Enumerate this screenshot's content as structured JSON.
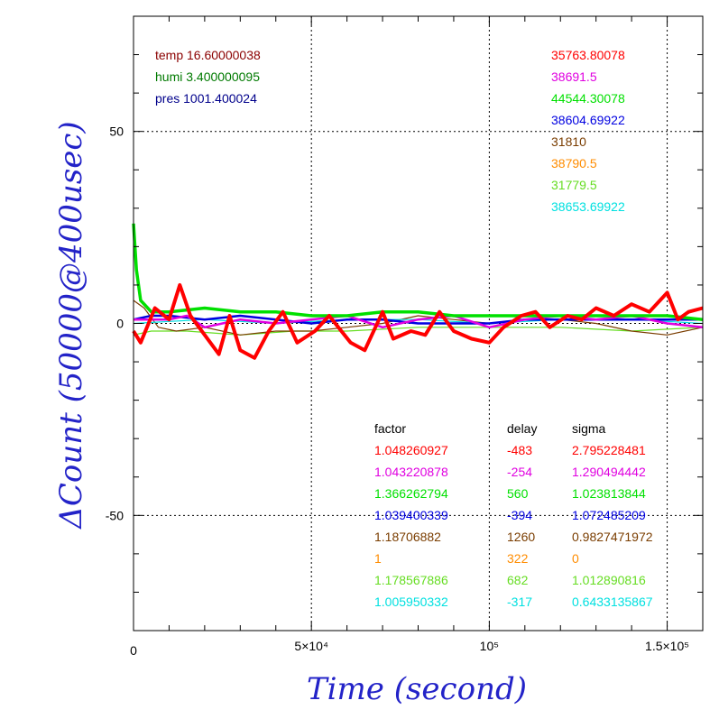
{
  "chart_data": {
    "type": "line",
    "xlabel": "Time (second)",
    "ylabel": "ΔCount (50000@400usec)",
    "xlim": [
      0,
      1600000
    ],
    "ylim": [
      -80,
      80
    ],
    "grid": true,
    "x_tick_labels": [
      {
        "value": 0,
        "label": "0"
      },
      {
        "value": 500000,
        "label": "5×10⁴"
      },
      {
        "value": 1000000,
        "label": "10⁵"
      },
      {
        "value": 1500000,
        "label": "1.5×10⁵"
      }
    ],
    "y_tick_labels": [
      {
        "value": 50,
        "label": "50"
      },
      {
        "value": 0,
        "label": "0"
      },
      {
        "value": -50,
        "label": "-50"
      }
    ],
    "env_annotations": [
      {
        "text": "temp 16.60000038",
        "color": "#8b0000"
      },
      {
        "text": "humi 3.400000095",
        "color": "#007a00"
      },
      {
        "text": "pres 1001.400024",
        "color": "#00008b"
      }
    ],
    "table_headers": {
      "factor": "factor",
      "delay": "delay",
      "sigma": "sigma"
    },
    "series": [
      {
        "mean": "35763.80078",
        "factor": "1.048260927",
        "delay": "-483",
        "sigma": "2.795228481",
        "color": "#ff0000",
        "points": [
          [
            0,
            -2
          ],
          [
            20000,
            -5
          ],
          [
            60000,
            4
          ],
          [
            100000,
            1
          ],
          [
            130000,
            10
          ],
          [
            160000,
            2
          ],
          [
            200000,
            -3
          ],
          [
            240000,
            -8
          ],
          [
            270000,
            2
          ],
          [
            300000,
            -7
          ],
          [
            340000,
            -9
          ],
          [
            380000,
            -2
          ],
          [
            420000,
            3
          ],
          [
            460000,
            -5
          ],
          [
            510000,
            -2
          ],
          [
            550000,
            2
          ],
          [
            610000,
            -5
          ],
          [
            650000,
            -7
          ],
          [
            700000,
            3
          ],
          [
            730000,
            -4
          ],
          [
            780000,
            -2
          ],
          [
            820000,
            -3
          ],
          [
            860000,
            3
          ],
          [
            900000,
            -2
          ],
          [
            950000,
            -4
          ],
          [
            1000000,
            -5
          ],
          [
            1040000,
            -1
          ],
          [
            1090000,
            2
          ],
          [
            1130000,
            3
          ],
          [
            1170000,
            -1
          ],
          [
            1220000,
            2
          ],
          [
            1260000,
            1
          ],
          [
            1300000,
            4
          ],
          [
            1350000,
            2
          ],
          [
            1400000,
            5
          ],
          [
            1450000,
            3
          ],
          [
            1500000,
            8
          ],
          [
            1530000,
            1
          ],
          [
            1560000,
            3
          ],
          [
            1600000,
            4
          ]
        ]
      },
      {
        "mean": "38691.5",
        "factor": "1.043220878",
        "delay": "-254",
        "sigma": "1.290494442",
        "color": "#e000e0",
        "points": [
          [
            0,
            1
          ],
          [
            100000,
            1
          ],
          [
            150000,
            2
          ],
          [
            200000,
            -1
          ],
          [
            300000,
            1
          ],
          [
            400000,
            0
          ],
          [
            500000,
            1
          ],
          [
            600000,
            2
          ],
          [
            700000,
            -1
          ],
          [
            800000,
            1
          ],
          [
            900000,
            2
          ],
          [
            1000000,
            -1
          ],
          [
            1100000,
            1
          ],
          [
            1200000,
            2
          ],
          [
            1300000,
            1
          ],
          [
            1400000,
            2
          ],
          [
            1500000,
            0
          ],
          [
            1600000,
            -1
          ]
        ]
      },
      {
        "mean": "44544.30078",
        "factor": "1.366262794",
        "delay": "560",
        "sigma": "1.023813844",
        "color": "#00e000",
        "points": [
          [
            0,
            26
          ],
          [
            8000,
            14
          ],
          [
            20000,
            6
          ],
          [
            50000,
            3
          ],
          [
            100000,
            3
          ],
          [
            200000,
            4
          ],
          [
            300000,
            3
          ],
          [
            400000,
            3
          ],
          [
            500000,
            2
          ],
          [
            600000,
            2
          ],
          [
            700000,
            3
          ],
          [
            800000,
            3
          ],
          [
            900000,
            2
          ],
          [
            1000000,
            2
          ],
          [
            1100000,
            2
          ],
          [
            1200000,
            2
          ],
          [
            1300000,
            2
          ],
          [
            1400000,
            2
          ],
          [
            1500000,
            2
          ],
          [
            1600000,
            1
          ]
        ]
      },
      {
        "mean": "38604.69922",
        "factor": "1.039400339",
        "delay": "-394",
        "sigma": "1.072485209",
        "color": "#0000e0",
        "points": [
          [
            0,
            1
          ],
          [
            50000,
            2
          ],
          [
            100000,
            2
          ],
          [
            200000,
            1
          ],
          [
            300000,
            2
          ],
          [
            400000,
            1
          ],
          [
            500000,
            0
          ],
          [
            600000,
            1
          ],
          [
            700000,
            1
          ],
          [
            800000,
            0
          ],
          [
            900000,
            0
          ],
          [
            1000000,
            0
          ],
          [
            1100000,
            1
          ],
          [
            1200000,
            1
          ],
          [
            1300000,
            1
          ],
          [
            1400000,
            1
          ],
          [
            1500000,
            1
          ],
          [
            1600000,
            1
          ]
        ]
      },
      {
        "mean": "31810",
        "factor": "1.18706882",
        "delay": "1260",
        "sigma": "0.9827471972",
        "color": "#7a3d00",
        "points": [
          [
            0,
            6
          ],
          [
            30000,
            4
          ],
          [
            70000,
            -1
          ],
          [
            120000,
            -2
          ],
          [
            200000,
            -1
          ],
          [
            300000,
            -3
          ],
          [
            400000,
            -2
          ],
          [
            500000,
            -2
          ],
          [
            600000,
            -1
          ],
          [
            700000,
            0
          ],
          [
            800000,
            2
          ],
          [
            900000,
            1
          ],
          [
            1000000,
            0
          ],
          [
            1100000,
            1
          ],
          [
            1200000,
            1
          ],
          [
            1300000,
            0
          ],
          [
            1400000,
            -2
          ],
          [
            1500000,
            -3
          ],
          [
            1600000,
            -1
          ]
        ]
      },
      {
        "mean": "38790.5",
        "factor": "1",
        "delay": "322",
        "sigma": "0",
        "color": "#ff8c00",
        "points": []
      },
      {
        "mean": "31779.5",
        "factor": "1.178567886",
        "delay": "682",
        "sigma": "1.012890816",
        "color": "#66dd22",
        "points": [
          [
            0,
            -3
          ],
          [
            50000,
            -2
          ],
          [
            150000,
            -2
          ],
          [
            300000,
            -3
          ],
          [
            450000,
            -2
          ],
          [
            600000,
            -2
          ],
          [
            800000,
            -1
          ],
          [
            1000000,
            -1
          ],
          [
            1200000,
            -1
          ],
          [
            1400000,
            -2
          ],
          [
            1600000,
            -1
          ]
        ]
      },
      {
        "mean": "38653.69922",
        "factor": "1.005950332",
        "delay": "-317",
        "sigma": "0.6433135867",
        "color": "#00e0e0",
        "points": [
          [
            0,
            0
          ],
          [
            200000,
            1
          ],
          [
            400000,
            0
          ],
          [
            600000,
            1
          ],
          [
            800000,
            1
          ],
          [
            1000000,
            0
          ],
          [
            1200000,
            1
          ],
          [
            1400000,
            1
          ],
          [
            1600000,
            0
          ]
        ]
      }
    ]
  }
}
